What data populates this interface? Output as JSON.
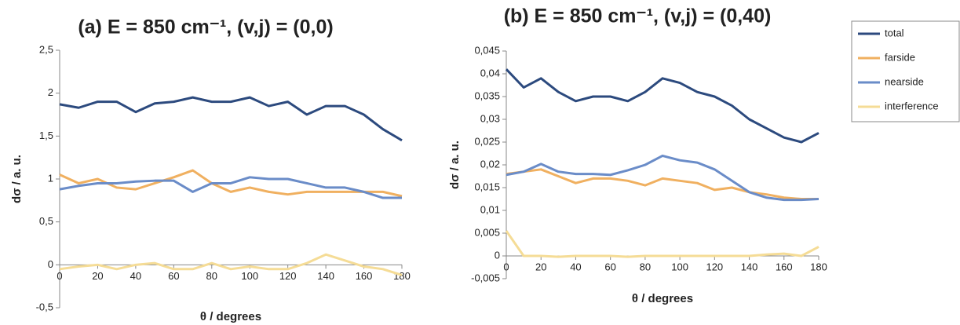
{
  "chart_data": [
    {
      "type": "line",
      "title": "(a)   E = 850 cm⁻¹, (v,j) = (0,0)",
      "x_label": "θ / degrees",
      "y_label": "dσ / a. u.",
      "x": [
        0,
        10,
        20,
        30,
        40,
        50,
        60,
        70,
        80,
        90,
        100,
        110,
        120,
        130,
        140,
        150,
        160,
        170,
        180
      ],
      "xlim": [
        0,
        180
      ],
      "xticks": [
        0,
        20,
        40,
        60,
        80,
        100,
        120,
        140,
        160,
        180
      ],
      "ylim": [
        -0.5,
        2.5
      ],
      "yticks": [
        {
          "value": -0.5,
          "label": "-0,5"
        },
        0,
        {
          "value": 0.5,
          "label": "0,5"
        },
        1,
        {
          "value": 1.5,
          "label": "1,5"
        },
        2,
        {
          "value": 2.5,
          "label": "2,5"
        }
      ],
      "series": [
        {
          "color": "#2c4a7e",
          "values": [
            1.87,
            1.83,
            1.9,
            1.9,
            1.78,
            1.88,
            1.9,
            1.95,
            1.9,
            1.9,
            1.95,
            1.85,
            1.9,
            1.75,
            1.85,
            1.85,
            1.75,
            1.58,
            1.45
          ]
        },
        {
          "color": "#f0b060",
          "values": [
            1.05,
            0.95,
            1.0,
            0.9,
            0.88,
            0.95,
            1.02,
            1.1,
            0.95,
            0.85,
            0.9,
            0.85,
            0.82,
            0.85,
            0.85,
            0.85,
            0.85,
            0.85,
            0.8
          ]
        },
        {
          "color": "#6a8cc8",
          "values": [
            0.88,
            0.92,
            0.95,
            0.95,
            0.97,
            0.98,
            0.98,
            0.85,
            0.95,
            0.95,
            1.02,
            1.0,
            1.0,
            0.95,
            0.9,
            0.9,
            0.85,
            0.78,
            0.78
          ]
        },
        {
          "color": "#f5dc96",
          "values": [
            -0.05,
            -0.02,
            0.0,
            -0.05,
            0.0,
            0.02,
            -0.05,
            -0.05,
            0.02,
            -0.05,
            -0.02,
            -0.05,
            -0.05,
            0.02,
            0.12,
            0.05,
            -0.02,
            -0.05,
            -0.12
          ]
        }
      ]
    },
    {
      "type": "line",
      "title": "(b)   E = 850 cm⁻¹, (v,j) = (0,40)",
      "x_label": "θ / degrees",
      "y_label": "dσ / a. u.",
      "x": [
        0,
        10,
        20,
        30,
        40,
        50,
        60,
        70,
        80,
        90,
        100,
        110,
        120,
        130,
        140,
        150,
        160,
        170,
        180
      ],
      "xlim": [
        0,
        180
      ],
      "xticks": [
        0,
        20,
        40,
        60,
        80,
        100,
        120,
        140,
        160,
        180
      ],
      "ylim": [
        -0.005,
        0.045
      ],
      "yticks": [
        {
          "value": -0.005,
          "label": "-0,005"
        },
        0,
        {
          "value": 0.005,
          "label": "0,005"
        },
        {
          "value": 0.01,
          "label": "0,01"
        },
        {
          "value": 0.015,
          "label": "0,015"
        },
        {
          "value": 0.02,
          "label": "0,02"
        },
        {
          "value": 0.025,
          "label": "0,025"
        },
        {
          "value": 0.03,
          "label": "0,03"
        },
        {
          "value": 0.035,
          "label": "0,035"
        },
        {
          "value": 0.04,
          "label": "0,04"
        },
        {
          "value": 0.045,
          "label": "0,045"
        }
      ],
      "legend": "right",
      "series": [
        {
          "name": "total",
          "color": "#2c4a7e",
          "values": [
            0.041,
            0.037,
            0.039,
            0.036,
            0.034,
            0.035,
            0.035,
            0.034,
            0.036,
            0.039,
            0.038,
            0.036,
            0.035,
            0.033,
            0.03,
            0.028,
            0.026,
            0.025,
            0.027
          ]
        },
        {
          "name": "farside",
          "color": "#f0b060",
          "values": [
            0.018,
            0.0185,
            0.019,
            0.0175,
            0.016,
            0.017,
            0.017,
            0.0165,
            0.0155,
            0.017,
            0.0165,
            0.016,
            0.0145,
            0.015,
            0.014,
            0.0135,
            0.0128,
            0.0125,
            0.0125
          ]
        },
        {
          "name": "nearside",
          "color": "#6a8cc8",
          "values": [
            0.0178,
            0.0185,
            0.0202,
            0.0185,
            0.018,
            0.018,
            0.0178,
            0.0188,
            0.02,
            0.022,
            0.021,
            0.0205,
            0.019,
            0.0165,
            0.014,
            0.0128,
            0.0123,
            0.0123,
            0.0125
          ]
        },
        {
          "name": "interference",
          "color": "#f5dc96",
          "values": [
            0.0055,
            0.0,
            0.0,
            -0.0002,
            0.0,
            0.0,
            0.0,
            -0.0002,
            0.0,
            0.0,
            0.0,
            0.0,
            0.0,
            0.0,
            0.0,
            0.0003,
            0.0005,
            0.0,
            0.002
          ]
        }
      ]
    }
  ]
}
